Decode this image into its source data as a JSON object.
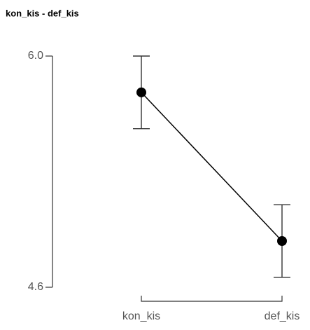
{
  "chart_data": {
    "type": "line",
    "title": "kon_kis - def_kis",
    "categories": [
      "kon_kis",
      "def_kis"
    ],
    "series": [
      {
        "color": "#000000",
        "values": [
          5.78,
          4.88
        ],
        "errors": [
          0.22,
          0.22
        ]
      }
    ],
    "ylim": [
      4.6,
      6.0
    ],
    "yticks": [
      4.6,
      {
        "value": 6.0,
        "label": "6.0"
      }
    ],
    "grid": false
  }
}
